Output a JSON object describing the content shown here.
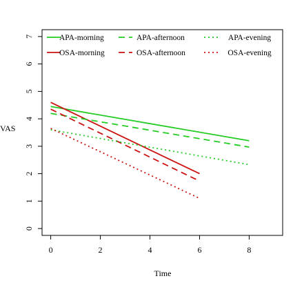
{
  "chart_data": {
    "type": "line",
    "xlabel": "Time",
    "ylabel": "VAS",
    "xlim": [
      -0.35,
      9.35
    ],
    "ylim": [
      -0.25,
      7.25
    ],
    "xticks": [
      0,
      2,
      4,
      6,
      8
    ],
    "yticks": [
      0,
      1,
      2,
      3,
      4,
      5,
      6,
      7
    ],
    "grid": false,
    "legend_position": "top",
    "series": [
      {
        "name": "APA-morning",
        "color": "#22cc22",
        "dash": "solid",
        "x": [
          0,
          8
        ],
        "y": [
          4.45,
          3.2
        ]
      },
      {
        "name": "OSA-morning",
        "color": "#cc1111",
        "dash": "solid",
        "x": [
          0,
          6
        ],
        "y": [
          4.6,
          2.0
        ]
      },
      {
        "name": "APA-afternoon",
        "color": "#22cc22",
        "dash": "dashed",
        "x": [
          0,
          8
        ],
        "y": [
          4.2,
          2.97
        ]
      },
      {
        "name": "OSA-afternoon",
        "color": "#cc1111",
        "dash": "dashed",
        "x": [
          0,
          6
        ],
        "y": [
          4.35,
          1.73
        ]
      },
      {
        "name": "APA-evening",
        "color": "#22cc22",
        "dash": "dotted",
        "x": [
          0,
          8
        ],
        "y": [
          3.6,
          2.33
        ]
      },
      {
        "name": "OSA-evening",
        "color": "#cc1111",
        "dash": "dotted",
        "x": [
          0,
          6
        ],
        "y": [
          3.65,
          1.1
        ]
      }
    ]
  }
}
